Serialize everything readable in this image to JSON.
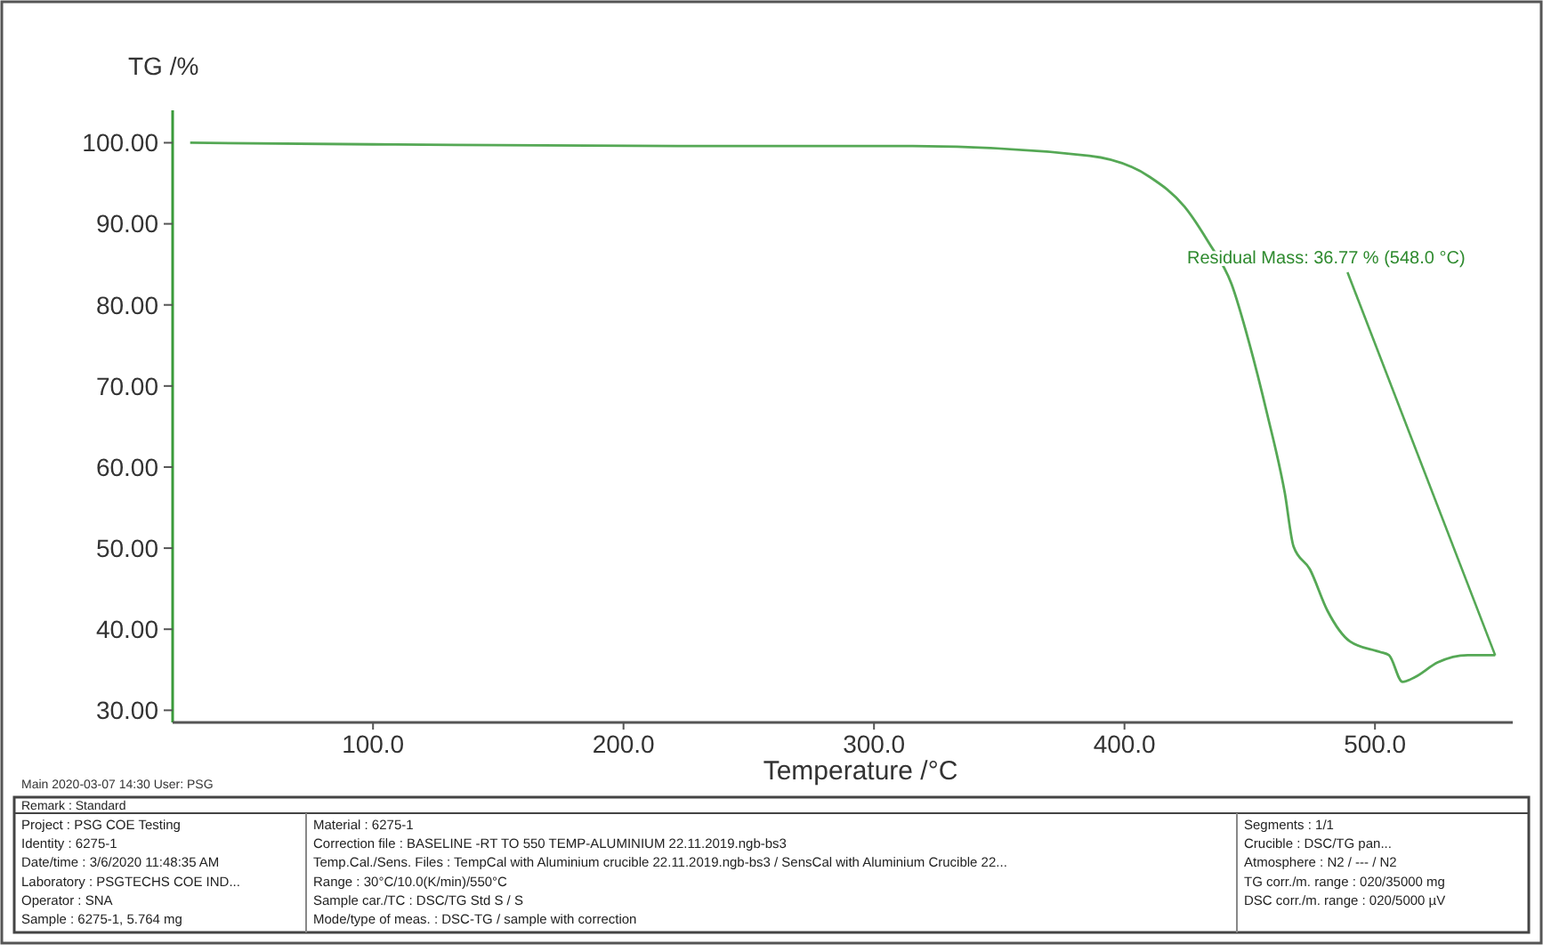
{
  "chart_data": {
    "type": "line",
    "xlabel": "Temperature /°C",
    "ylabel": "TG /%",
    "x": [
      27,
      100,
      221.6,
      315.5,
      386,
      410,
      424,
      433.6,
      442.7,
      449.8,
      457,
      464,
      467.5,
      474,
      481,
      490,
      502,
      505.6,
      511,
      516,
      525,
      537,
      548
    ],
    "series": [
      {
        "color": "#55a855",
        "values": [
          100,
          99.8,
          99.6,
          99.6,
          98.4,
          95.8,
          92.1,
          87.7,
          82.6,
          75.3,
          66.5,
          56.8,
          50.2,
          47.4,
          42.3,
          38.5,
          37.2,
          36.8,
          33.5,
          34.1,
          35.9,
          36.8,
          36.8
        ]
      }
    ],
    "xlim": [
      20,
      555
    ],
    "ylim": [
      28.5,
      104
    ],
    "xticks": [
      {
        "value": 100,
        "label": "100.0"
      },
      {
        "value": 200,
        "label": "200.0"
      },
      {
        "value": 300,
        "label": "300.0"
      },
      {
        "value": 400,
        "label": "400.0"
      },
      {
        "value": 500,
        "label": "500.0"
      }
    ],
    "yticks": [
      {
        "value": 30,
        "label": "30.00"
      },
      {
        "value": 40,
        "label": "40.00"
      },
      {
        "value": 50,
        "label": "50.00"
      },
      {
        "value": 60,
        "label": "60.00"
      },
      {
        "value": 70,
        "label": "70.00"
      },
      {
        "value": 80,
        "label": "80.00"
      },
      {
        "value": 90,
        "label": "90.00"
      },
      {
        "value": 100,
        "label": "100.00"
      }
    ],
    "grid": false,
    "marker": "none",
    "line_style": "solid",
    "annotations": [
      {
        "text": "Residual Mass: 36.77 % (548.0 °C)",
        "x": 548,
        "y": 36.77
      },
      "Main  2020-03-07 14:30  User: PSG",
      "Remark : Standard",
      "Project : PSG COE Testing",
      "Identity : 6275-1",
      "Date/time : 3/6/2020 11:48:35 AM",
      "Laboratory : PSGTECHS COE IND...",
      "Operator : SNA",
      "Sample : 6275-1, 5.764 mg",
      "Material : 6275-1",
      "Correction file : BASELINE -RT TO 550 TEMP-ALUMINIUM 22.11.2019.ngb-bs3",
      "Temp.Cal./Sens. Files : TempCal with Aluminium crucible 22.11.2019.ngb-bs3 / SensCal with Aluminium Crucible 22...",
      "Range : 30°C/10.0(K/min)/550°C",
      "Sample car./TC : DSC/TG Std S / S",
      "Mode/type of meas. : DSC-TG / sample with correction",
      "Segments : 1/1",
      "Crucible : DSC/TG pan...",
      "Atmosphere : N2 / --- / N2",
      "TG corr./m. range : 020/35000 mg",
      "DSC corr./m. range : 020/5000 µV"
    ]
  }
}
